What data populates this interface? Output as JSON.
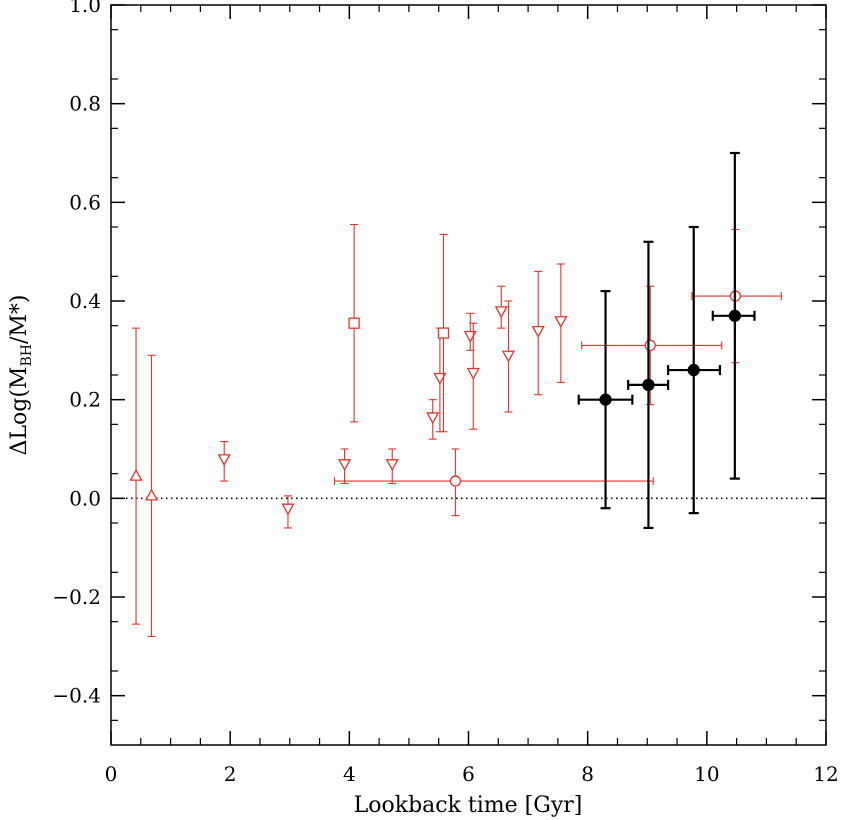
{
  "chart_data": {
    "type": "scatter",
    "xlabel": "Lookback time [Gyr]",
    "ylabel": {
      "prefix": "ΔLog(M",
      "sub": "BH",
      "suffix": "/M*)"
    },
    "xlim": [
      0,
      12
    ],
    "ylim": [
      -0.5,
      1.0
    ],
    "x_ticks": [
      "0",
      "2",
      "4",
      "6",
      "8",
      "10",
      "12"
    ],
    "y_ticks": [
      "−0.4",
      "−0.2",
      "0.0",
      "0.2",
      "0.4",
      "0.6",
      "0.8",
      "1.0"
    ],
    "reference_line": {
      "y": 0.0,
      "style": "dotted"
    },
    "series": [
      {
        "marker": "triangle-up",
        "color": "#e8332a",
        "filled": false,
        "points": [
          {
            "x": 0.42,
            "y": 0.045,
            "y_lo": -0.255,
            "y_hi": 0.345
          },
          {
            "x": 0.68,
            "y": 0.005,
            "y_lo": -0.28,
            "y_hi": 0.29
          }
        ]
      },
      {
        "marker": "triangle-down",
        "color": "#e8332a",
        "filled": false,
        "points": [
          {
            "x": 1.9,
            "y": 0.08,
            "y_lo": 0.035,
            "y_hi": 0.115
          },
          {
            "x": 2.97,
            "y": -0.02,
            "y_lo": -0.06,
            "y_hi": 0.005
          },
          {
            "x": 3.92,
            "y": 0.07,
            "y_lo": 0.03,
            "y_hi": 0.1
          },
          {
            "x": 4.72,
            "y": 0.07,
            "y_lo": 0.03,
            "y_hi": 0.1
          },
          {
            "x": 5.4,
            "y": 0.165,
            "y_lo": 0.12,
            "y_hi": 0.2
          },
          {
            "x": 5.52,
            "y": 0.245,
            "y_lo": 0.135,
            "y_hi": 0.345
          },
          {
            "x": 6.03,
            "y": 0.33,
            "y_lo": 0.3,
            "y_hi": 0.375
          },
          {
            "x": 6.08,
            "y": 0.255,
            "y_lo": 0.14,
            "y_hi": 0.355
          },
          {
            "x": 6.55,
            "y": 0.38,
            "y_lo": 0.345,
            "y_hi": 0.43
          },
          {
            "x": 6.67,
            "y": 0.29,
            "y_lo": 0.175,
            "y_hi": 0.4
          },
          {
            "x": 7.17,
            "y": 0.34,
            "y_lo": 0.21,
            "y_hi": 0.46
          },
          {
            "x": 7.55,
            "y": 0.36,
            "y_lo": 0.235,
            "y_hi": 0.475
          }
        ]
      },
      {
        "marker": "square",
        "color": "#e8332a",
        "filled": false,
        "points": [
          {
            "x": 4.08,
            "y": 0.355,
            "y_lo": 0.155,
            "y_hi": 0.555
          },
          {
            "x": 5.58,
            "y": 0.335,
            "y_lo": 0.135,
            "y_hi": 0.535
          }
        ]
      },
      {
        "marker": "circle",
        "color": "#e8332a",
        "filled": false,
        "points": [
          {
            "x": 5.78,
            "y": 0.035,
            "y_lo": -0.035,
            "y_hi": 0.1,
            "x_lo": 3.75,
            "x_hi": 9.1
          },
          {
            "x": 9.05,
            "y": 0.31,
            "y_lo": 0.19,
            "y_hi": 0.43,
            "x_lo": 7.9,
            "x_hi": 10.25
          },
          {
            "x": 10.48,
            "y": 0.41,
            "y_lo": 0.275,
            "y_hi": 0.545,
            "x_lo": 9.75,
            "x_hi": 11.25
          }
        ]
      },
      {
        "marker": "circle",
        "color": "#000000",
        "filled": true,
        "points": [
          {
            "x": 8.3,
            "y": 0.2,
            "y_lo": -0.02,
            "y_hi": 0.42,
            "x_lo": 7.85,
            "x_hi": 8.75
          },
          {
            "x": 9.02,
            "y": 0.23,
            "y_lo": -0.06,
            "y_hi": 0.52,
            "x_lo": 8.68,
            "x_hi": 9.35
          },
          {
            "x": 9.78,
            "y": 0.26,
            "y_lo": -0.03,
            "y_hi": 0.55,
            "x_lo": 9.35,
            "x_hi": 10.22
          },
          {
            "x": 10.47,
            "y": 0.37,
            "y_lo": 0.04,
            "y_hi": 0.7,
            "x_lo": 10.1,
            "x_hi": 10.8
          }
        ]
      }
    ]
  }
}
